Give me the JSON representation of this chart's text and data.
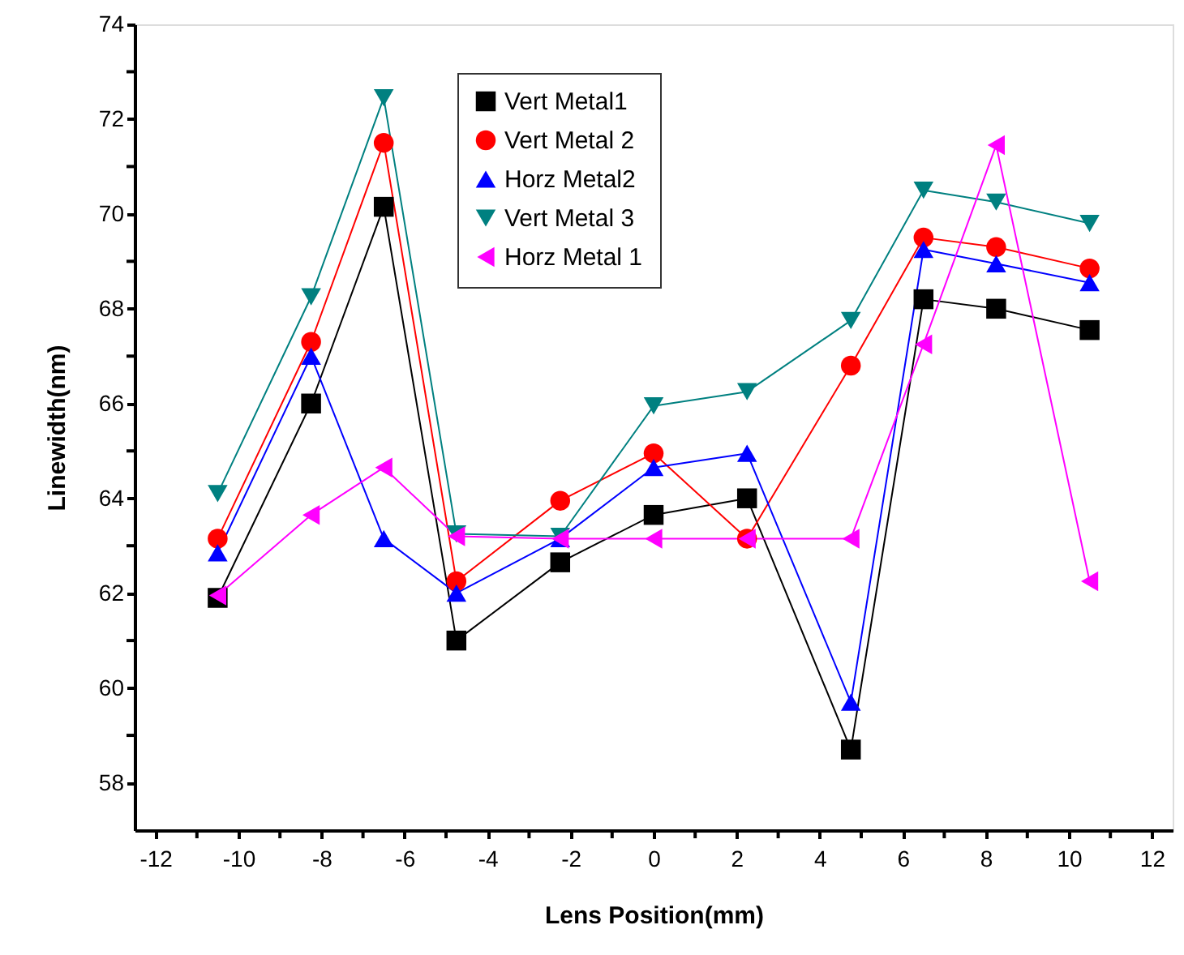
{
  "chart_data": {
    "type": "line",
    "xlabel": "Lens Position(mm)",
    "ylabel": "Linewidth(nm)",
    "x": [
      -10.5,
      -8.25,
      -6.5,
      -4.75,
      -2.25,
      0,
      2.25,
      4.75,
      6.5,
      8.25,
      10.5
    ],
    "series": [
      {
        "name": "Vert Metal1",
        "color": "#000000",
        "marker": "square",
        "values": [
          61.9,
          66.0,
          70.15,
          61.0,
          62.65,
          63.65,
          64.0,
          58.7,
          68.2,
          68.0,
          67.55
        ]
      },
      {
        "name": "Vert Metal 2",
        "color": "#ff0000",
        "marker": "circle",
        "values": [
          63.15,
          67.3,
          71.5,
          62.25,
          63.95,
          64.95,
          63.15,
          66.8,
          69.5,
          69.3,
          68.85
        ]
      },
      {
        "name": "Horz Metal2",
        "color": "#0000ff",
        "marker": "triangle",
        "values": [
          62.85,
          67.0,
          63.15,
          62.0,
          63.15,
          64.65,
          64.95,
          59.7,
          69.25,
          68.95,
          68.55
        ]
      },
      {
        "name": "Vert Metal 3",
        "color": "#008080",
        "marker": "triangle-down",
        "values": [
          64.1,
          68.25,
          72.45,
          63.25,
          63.2,
          65.95,
          66.25,
          67.75,
          70.5,
          70.25,
          69.8
        ]
      },
      {
        "name": "Horz Metal 1",
        "color": "#ff00ff",
        "marker": "triangle-left",
        "values": [
          61.95,
          63.65,
          64.65,
          63.2,
          63.15,
          63.15,
          63.15,
          63.15,
          67.25,
          71.45,
          62.25
        ]
      }
    ],
    "xlim": [
      -12.5,
      12.5
    ],
    "xticks": [
      -12,
      {
        "value": -11,
        "label": null
      },
      -10,
      {
        "value": -9,
        "label": null
      },
      -8,
      {
        "value": -7,
        "label": null
      },
      -6,
      {
        "value": -5,
        "label": null
      },
      -4,
      {
        "value": -3,
        "label": null
      },
      -2,
      {
        "value": -1,
        "label": null
      },
      0,
      {
        "value": 1,
        "label": null
      },
      2,
      {
        "value": 3,
        "label": null
      },
      4,
      {
        "value": 5,
        "label": null
      },
      6,
      {
        "value": 7,
        "label": null
      },
      8,
      {
        "value": 9,
        "label": null
      },
      10,
      {
        "value": 11,
        "label": null
      },
      12
    ],
    "ylim": [
      57,
      74
    ],
    "yticks": [
      58,
      {
        "value": 59,
        "label": null
      },
      60,
      {
        "value": 61,
        "label": null
      },
      62,
      {
        "value": 63,
        "label": null
      },
      64,
      {
        "value": 65,
        "label": null
      },
      66,
      {
        "value": 67,
        "label": null
      },
      68,
      {
        "value": 69,
        "label": null
      },
      70,
      {
        "value": 71,
        "label": null
      },
      72,
      {
        "value": 73,
        "label": null
      },
      74
    ],
    "legend": "top",
    "grid": false,
    "line_style": "solid"
  }
}
